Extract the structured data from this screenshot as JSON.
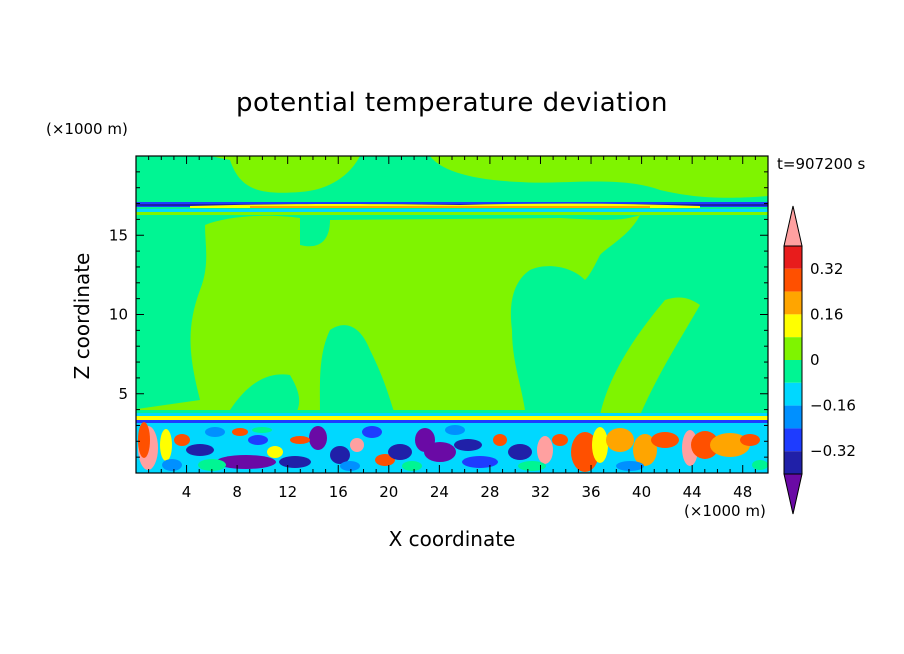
{
  "chart_data": {
    "type": "heatmap",
    "title": "potential temperature deviation",
    "xlabel": "X coordinate",
    "ylabel": "Z coordinate",
    "x_unit": "(×1000 m)",
    "y_unit": "(×1000 m)",
    "time_label": "t=907200 s",
    "xlim": [
      0,
      50
    ],
    "ylim": [
      0,
      20
    ],
    "x_ticks": [
      4,
      8,
      12,
      16,
      20,
      24,
      28,
      32,
      36,
      40,
      44,
      48
    ],
    "y_ticks": [
      5,
      10,
      15
    ],
    "colorbar": {
      "levels": [
        -0.4,
        -0.32,
        -0.24,
        -0.16,
        -0.08,
        0,
        0.08,
        0.16,
        0.24,
        0.32,
        0.4
      ],
      "labels": [
        "0.32",
        "0.16",
        "0",
        "−0.16",
        "−0.32"
      ],
      "colors": [
        "#6a0aa5",
        "#2020a8",
        "#1e3cff",
        "#0090ff",
        "#00d8ff",
        "#00f593",
        "#7ff400",
        "#ffff00",
        "#ffa500",
        "#ff5000",
        "#e81c1c",
        "#ffa0a0"
      ],
      "extend": "both"
    }
  }
}
